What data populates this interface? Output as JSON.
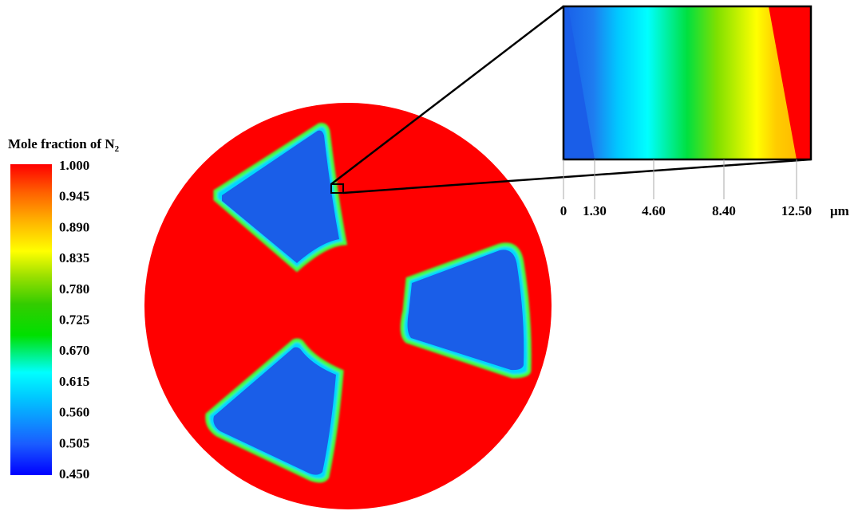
{
  "colorbar": {
    "title": "Mole fraction of N",
    "title_subscript": "2",
    "ticks": [
      "1.000",
      "0.945",
      "0.890",
      "0.835",
      "0.780",
      "0.725",
      "0.670",
      "0.615",
      "0.560",
      "0.505",
      "0.450"
    ],
    "colors": [
      "#0000ff",
      "#1a5cff",
      "#00c8ff",
      "#00ffff",
      "#00e000",
      "#33cc00",
      "#9be000",
      "#ffff00",
      "#ffb000",
      "#ff6000",
      "#ff0000"
    ]
  },
  "inset": {
    "axis_ticks": [
      "0",
      "1.30",
      "4.60",
      "8.40",
      "12.50"
    ],
    "axis_unit": "μm"
  },
  "fill_colors": {
    "background_gas": "#ff0000",
    "pocket": "#1a5ee8"
  }
}
